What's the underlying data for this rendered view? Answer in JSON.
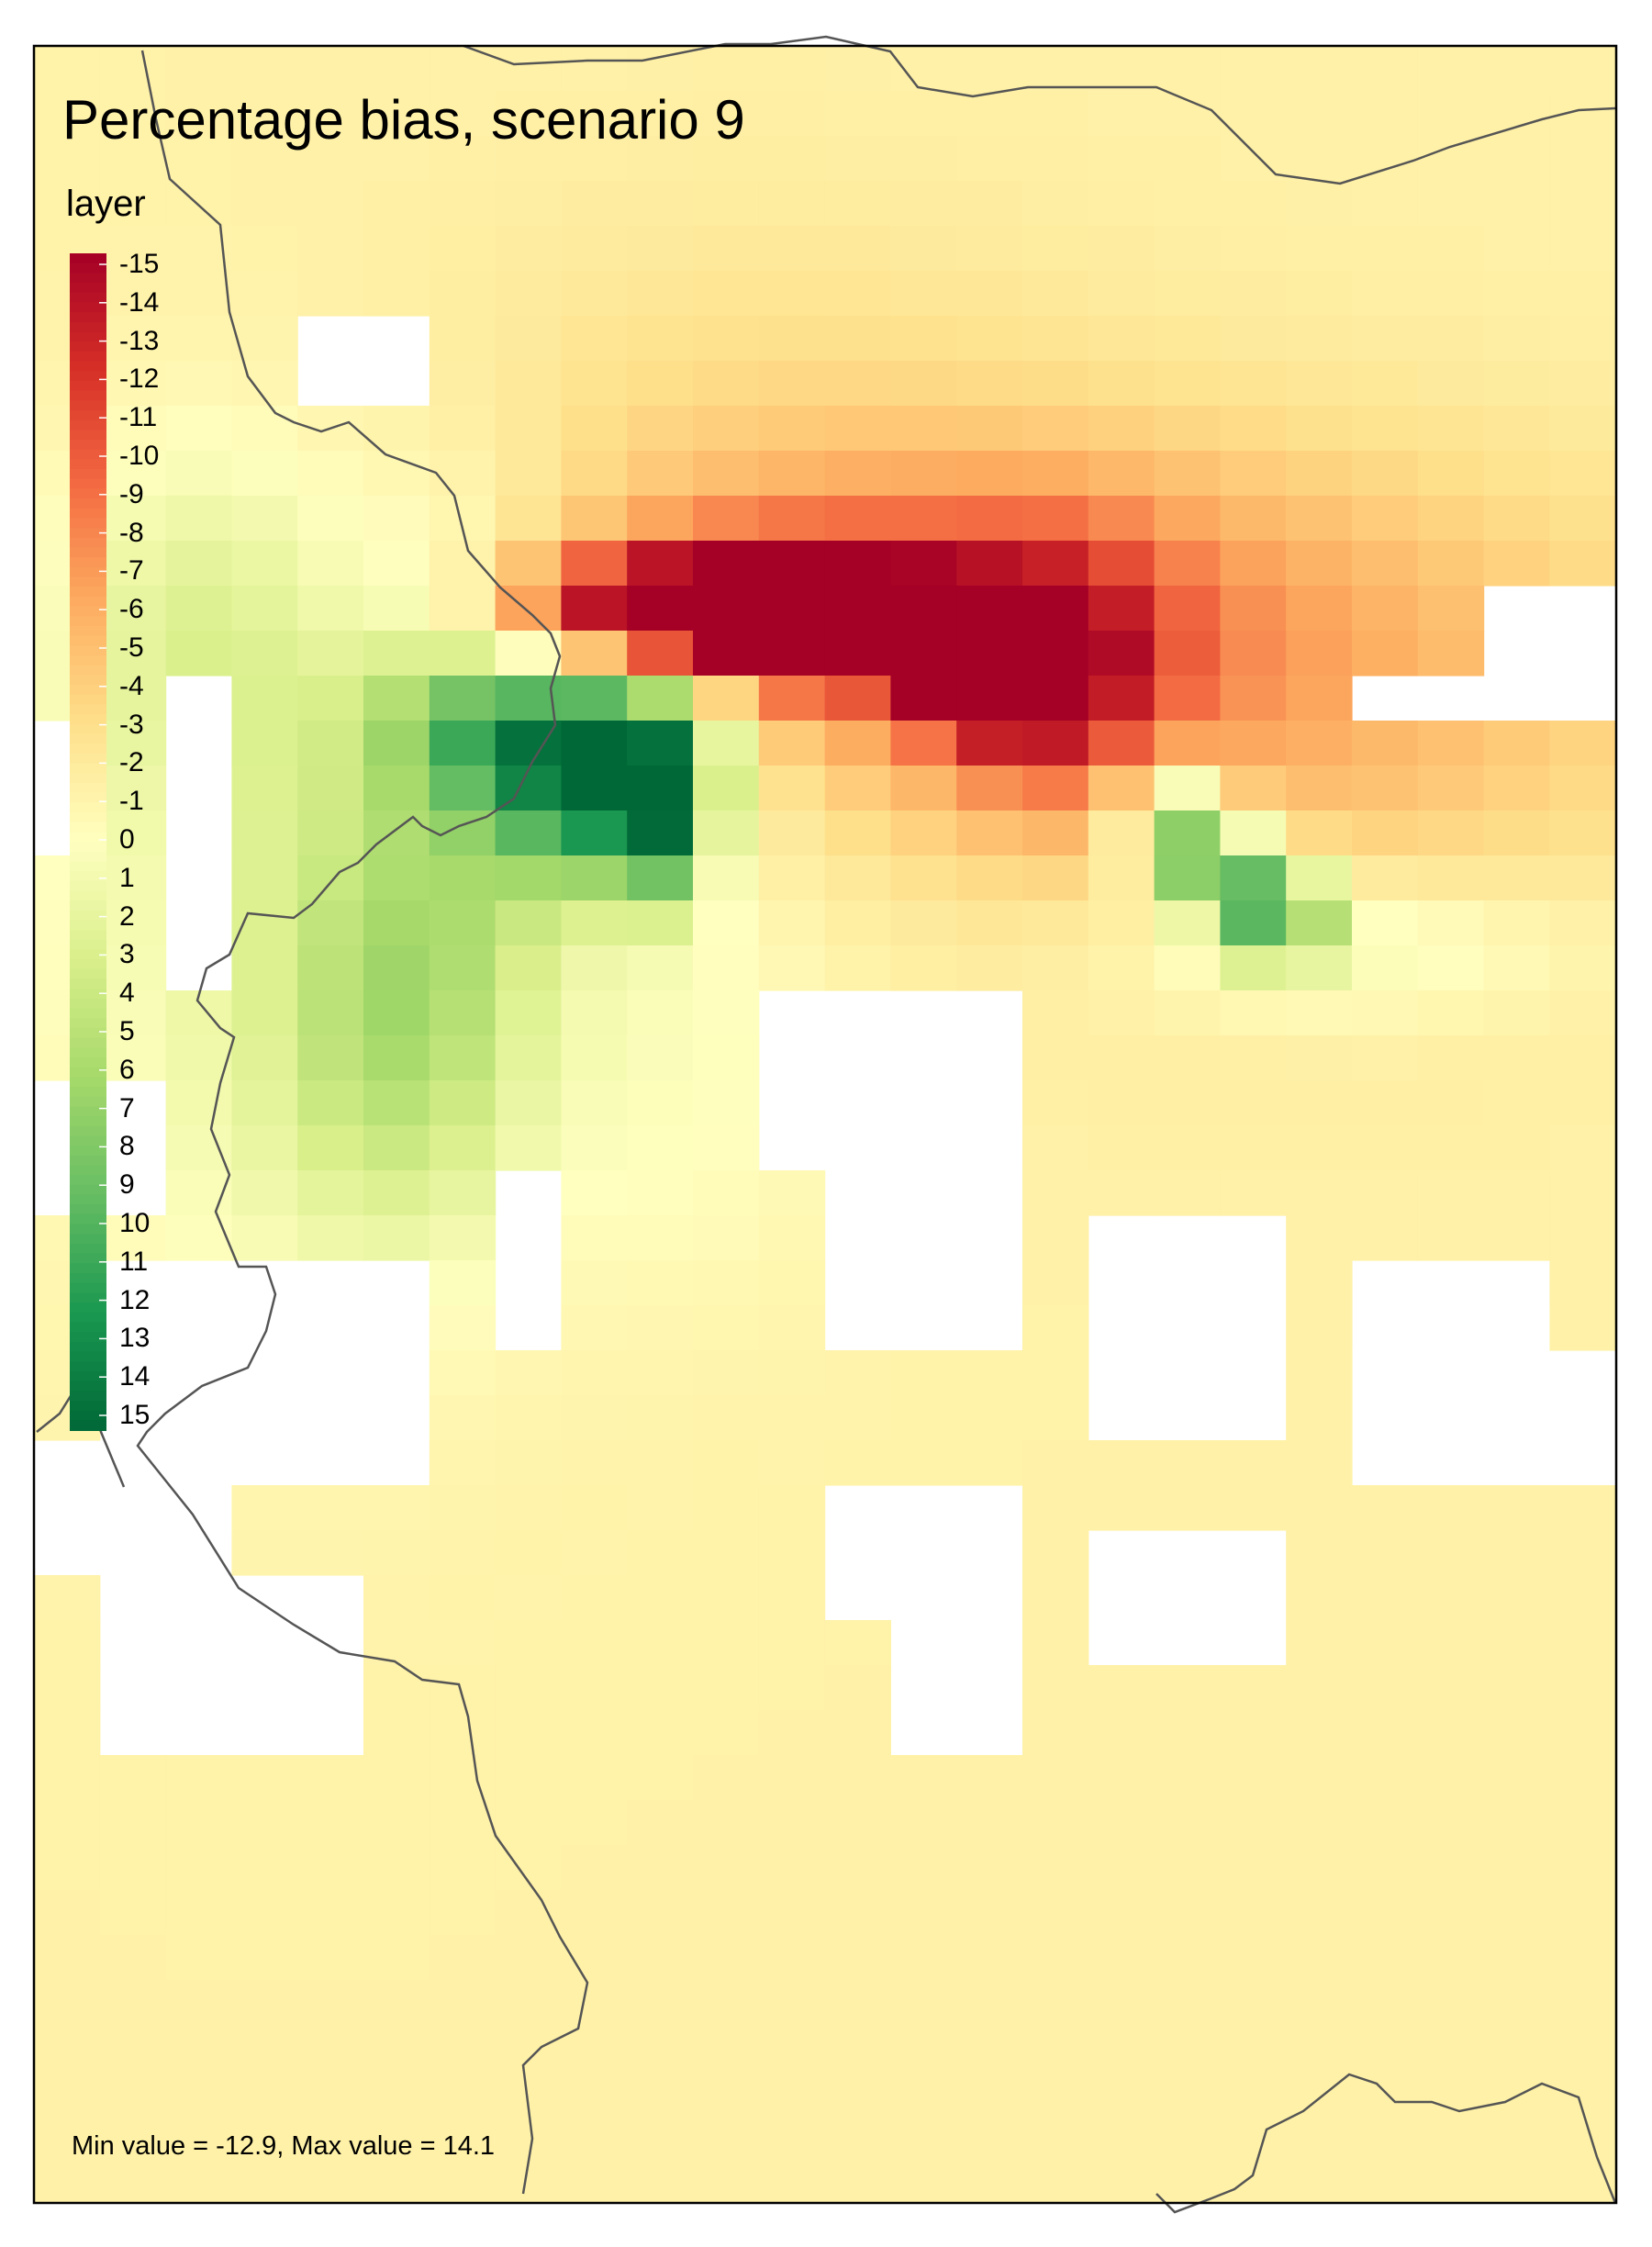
{
  "map": {
    "title": "Percentage bias, scenario 9",
    "legend_title": "layer",
    "legend_ticks": [
      "-15",
      "-14",
      "-13",
      "-12",
      "-11",
      "-10",
      "-9",
      "-8",
      "-7",
      "-6",
      "-5",
      "-4",
      "-3",
      "-2",
      "-1",
      "0",
      "1",
      "2",
      "3",
      "4",
      "5",
      "6",
      "7",
      "8",
      "9",
      "10",
      "11",
      "12",
      "13",
      "14",
      "15"
    ],
    "legend_range": [
      -15,
      15
    ],
    "color_scale": [
      "#a50026",
      "#d73027",
      "#f46d43",
      "#fdae61",
      "#fee08b",
      "#ffffbf",
      "#d9ef8b",
      "#a6d96a",
      "#66bd63",
      "#1a9850",
      "#006837"
    ],
    "caption": "Min value = -12.9, Max value = 14.1",
    "border_color": "#555555"
  }
}
